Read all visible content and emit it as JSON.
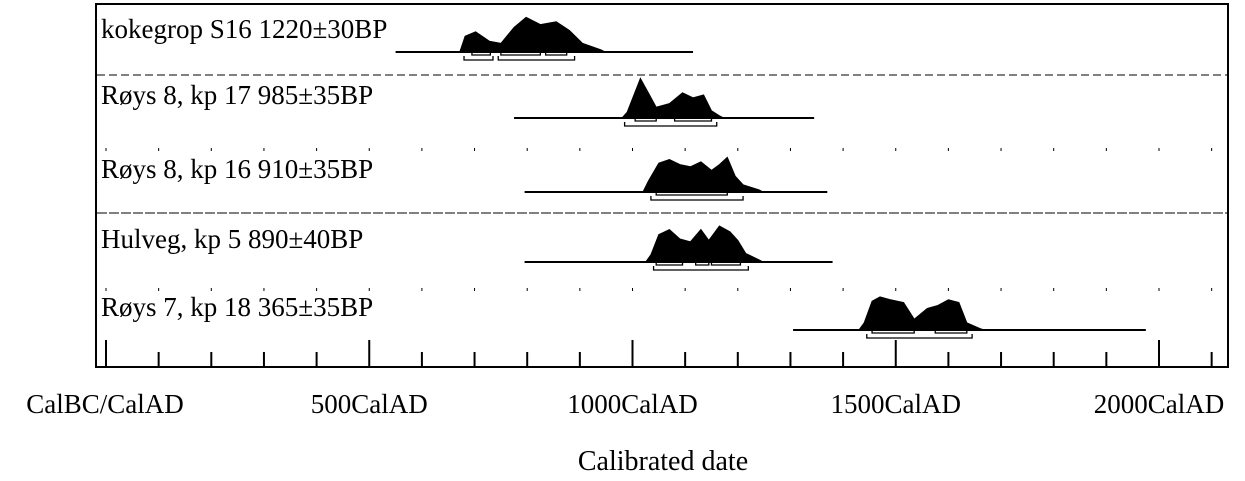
{
  "chart_data": {
    "type": "radiocarbon-calibration",
    "xlabel": "Calibrated date",
    "xlim": [
      -50,
      2100
    ],
    "x_ticks": [
      {
        "value": 0,
        "label": "CalBC/CalAD"
      },
      {
        "value": 500,
        "label": "500CalAD"
      },
      {
        "value": 1000,
        "label": "1000CalAD"
      },
      {
        "value": 1500,
        "label": "1500CalAD"
      },
      {
        "value": 2000,
        "label": "2000CalAD"
      }
    ],
    "samples": [
      {
        "label": "kokegrop S16  1220±30BP",
        "line_range": [
          550,
          1115
        ],
        "peaks": [
          [
            682,
            22
          ],
          [
            702,
            28
          ],
          [
            728,
            15
          ],
          [
            750,
            12
          ],
          [
            775,
            34
          ],
          [
            798,
            48
          ],
          [
            825,
            38
          ],
          [
            855,
            42
          ],
          [
            880,
            30
          ],
          [
            905,
            12
          ],
          [
            940,
            3
          ]
        ],
        "range_1sigma": [
          [
            695,
            730
          ],
          [
            750,
            825
          ],
          [
            835,
            875
          ]
        ],
        "range_2sigma": [
          [
            680,
            735
          ],
          [
            745,
            890
          ]
        ]
      },
      {
        "label": "Røys 8, kp 17  985±35BP",
        "line_range": [
          775,
          1345
        ],
        "peaks": [
          [
            990,
            8
          ],
          [
            1015,
            55
          ],
          [
            1030,
            35
          ],
          [
            1045,
            15
          ],
          [
            1070,
            20
          ],
          [
            1095,
            35
          ],
          [
            1115,
            28
          ],
          [
            1135,
            32
          ],
          [
            1150,
            10
          ],
          [
            1165,
            3
          ]
        ],
        "range_1sigma": [
          [
            1005,
            1045
          ],
          [
            1080,
            1150
          ]
        ],
        "range_2sigma": [
          [
            985,
            1160
          ]
        ]
      },
      {
        "label": "Røys 8, kp 16  910±35BP",
        "line_range": [
          795,
          1370
        ],
        "peaks": [
          [
            1030,
            15
          ],
          [
            1050,
            40
          ],
          [
            1070,
            45
          ],
          [
            1090,
            38
          ],
          [
            1110,
            35
          ],
          [
            1130,
            42
          ],
          [
            1150,
            30
          ],
          [
            1165,
            38
          ],
          [
            1180,
            48
          ],
          [
            1195,
            22
          ],
          [
            1210,
            10
          ],
          [
            1240,
            3
          ]
        ],
        "range_1sigma": [
          [
            1045,
            1180
          ]
        ],
        "range_2sigma": [
          [
            1035,
            1210
          ]
        ]
      },
      {
        "label": "Hulveg, kp 5  890±40BP",
        "line_range": [
          795,
          1380
        ],
        "peaks": [
          [
            1035,
            10
          ],
          [
            1050,
            38
          ],
          [
            1070,
            45
          ],
          [
            1090,
            32
          ],
          [
            1110,
            28
          ],
          [
            1130,
            45
          ],
          [
            1145,
            30
          ],
          [
            1165,
            50
          ],
          [
            1185,
            42
          ],
          [
            1200,
            30
          ],
          [
            1215,
            12
          ],
          [
            1240,
            3
          ]
        ],
        "range_1sigma": [
          [
            1045,
            1095
          ],
          [
            1120,
            1145
          ],
          [
            1150,
            1205
          ]
        ],
        "range_2sigma": [
          [
            1040,
            1220
          ]
        ]
      },
      {
        "label": "Røys 7, kp 18  365±35BP",
        "line_range": [
          1305,
          1975
        ],
        "peaks": [
          [
            1440,
            10
          ],
          [
            1455,
            40
          ],
          [
            1470,
            46
          ],
          [
            1490,
            42
          ],
          [
            1515,
            38
          ],
          [
            1535,
            15
          ],
          [
            1560,
            30
          ],
          [
            1580,
            34
          ],
          [
            1600,
            42
          ],
          [
            1620,
            38
          ],
          [
            1635,
            10
          ],
          [
            1660,
            2
          ]
        ],
        "range_1sigma": [
          [
            1455,
            1535
          ],
          [
            1575,
            1635
          ]
        ],
        "range_2sigma": [
          [
            1445,
            1645
          ]
        ]
      }
    ]
  }
}
